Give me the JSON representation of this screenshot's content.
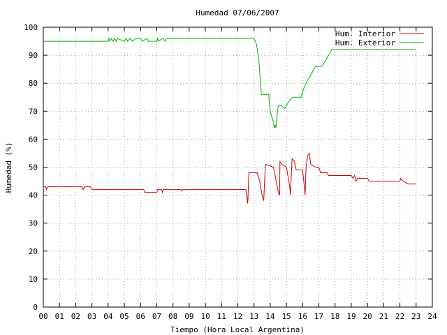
{
  "chart_data": {
    "type": "line",
    "title": "Humedad 07/06/2007",
    "xlabel": "Tiempo (Hora Local Argentina)",
    "ylabel": "Humedad (%)",
    "xlim": [
      0,
      24
    ],
    "ylim": [
      0,
      100
    ],
    "grid": true,
    "legend_position": "top-right",
    "x_ticks": [
      "00",
      "01",
      "02",
      "03",
      "04",
      "05",
      "06",
      "07",
      "08",
      "09",
      "10",
      "11",
      "12",
      "13",
      "14",
      "15",
      "16",
      "17",
      "18",
      "19",
      "20",
      "21",
      "22",
      "23",
      "24"
    ],
    "y_ticks": [
      "0",
      "10",
      "20",
      "30",
      "40",
      "50",
      "60",
      "70",
      "80",
      "90",
      "100"
    ],
    "series": [
      {
        "name": "Hum. Interior",
        "color": "#cc0000",
        "points": [
          [
            0.0,
            43
          ],
          [
            0.15,
            43
          ],
          [
            0.2,
            42
          ],
          [
            0.28,
            43
          ],
          [
            2.4,
            43
          ],
          [
            2.45,
            42
          ],
          [
            2.55,
            43
          ],
          [
            2.9,
            43
          ],
          [
            3.0,
            42
          ],
          [
            6.2,
            42
          ],
          [
            6.25,
            41
          ],
          [
            7.0,
            41
          ],
          [
            7.05,
            42
          ],
          [
            7.3,
            42
          ],
          [
            7.35,
            41
          ],
          [
            7.4,
            42
          ],
          [
            8.5,
            42
          ],
          [
            8.55,
            41.5
          ],
          [
            8.6,
            42
          ],
          [
            12.5,
            42
          ],
          [
            12.55,
            40
          ],
          [
            12.6,
            37
          ],
          [
            12.62,
            38
          ],
          [
            12.68,
            48
          ],
          [
            13.2,
            48
          ],
          [
            13.35,
            45
          ],
          [
            13.5,
            40
          ],
          [
            13.6,
            38
          ],
          [
            13.65,
            45
          ],
          [
            13.7,
            51
          ],
          [
            14.2,
            50
          ],
          [
            14.3,
            47
          ],
          [
            14.5,
            41
          ],
          [
            14.58,
            40
          ],
          [
            14.6,
            52
          ],
          [
            14.7,
            51
          ],
          [
            15.0,
            50
          ],
          [
            15.2,
            43
          ],
          [
            15.25,
            40
          ],
          [
            15.3,
            47
          ],
          [
            15.35,
            53
          ],
          [
            15.5,
            52
          ],
          [
            15.6,
            49
          ],
          [
            16.0,
            49
          ],
          [
            16.1,
            43
          ],
          [
            16.15,
            40
          ],
          [
            16.2,
            49
          ],
          [
            16.3,
            54
          ],
          [
            16.4,
            55
          ],
          [
            16.5,
            51
          ],
          [
            16.8,
            50
          ],
          [
            17.0,
            50
          ],
          [
            17.1,
            48
          ],
          [
            17.5,
            48
          ],
          [
            17.6,
            47
          ],
          [
            19.0,
            47
          ],
          [
            19.1,
            46
          ],
          [
            19.2,
            47
          ],
          [
            19.3,
            45
          ],
          [
            19.4,
            46
          ],
          [
            20.0,
            46
          ],
          [
            20.1,
            45
          ],
          [
            22.0,
            45
          ],
          [
            22.05,
            46
          ],
          [
            22.2,
            45
          ],
          [
            22.5,
            44
          ],
          [
            23.0,
            44
          ]
        ]
      },
      {
        "name": "Hum. Exterior",
        "color": "#00b000",
        "points": [
          [
            0.0,
            95
          ],
          [
            4.0,
            95
          ],
          [
            4.05,
            96
          ],
          [
            4.1,
            95
          ],
          [
            4.2,
            96
          ],
          [
            4.3,
            95
          ],
          [
            4.4,
            96
          ],
          [
            4.5,
            95
          ],
          [
            4.55,
            96
          ],
          [
            5.0,
            95
          ],
          [
            5.1,
            96
          ],
          [
            5.2,
            95
          ],
          [
            5.35,
            96
          ],
          [
            5.5,
            95
          ],
          [
            5.7,
            96
          ],
          [
            6.0,
            96
          ],
          [
            6.1,
            95
          ],
          [
            6.4,
            96
          ],
          [
            6.5,
            95
          ],
          [
            7.0,
            95
          ],
          [
            7.05,
            96
          ],
          [
            7.1,
            95
          ],
          [
            7.4,
            96
          ],
          [
            7.5,
            95
          ],
          [
            7.6,
            96
          ],
          [
            13.0,
            96
          ],
          [
            13.15,
            94
          ],
          [
            13.3,
            88
          ],
          [
            13.4,
            80
          ],
          [
            13.45,
            76
          ],
          [
            13.9,
            76
          ],
          [
            14.0,
            70
          ],
          [
            14.1,
            68
          ],
          [
            14.2,
            66
          ],
          [
            14.25,
            64
          ],
          [
            14.3,
            65
          ],
          [
            14.35,
            64
          ],
          [
            14.45,
            70
          ],
          [
            14.5,
            72
          ],
          [
            14.7,
            72
          ],
          [
            14.9,
            71
          ],
          [
            15.0,
            72
          ],
          [
            15.1,
            73
          ],
          [
            15.2,
            74
          ],
          [
            15.4,
            75
          ],
          [
            15.9,
            75
          ],
          [
            16.0,
            77
          ],
          [
            16.2,
            80
          ],
          [
            16.4,
            82
          ],
          [
            16.6,
            84
          ],
          [
            16.8,
            86
          ],
          [
            17.2,
            86
          ],
          [
            17.4,
            88
          ],
          [
            17.6,
            90
          ],
          [
            17.8,
            92
          ],
          [
            23.0,
            92
          ]
        ]
      }
    ]
  }
}
